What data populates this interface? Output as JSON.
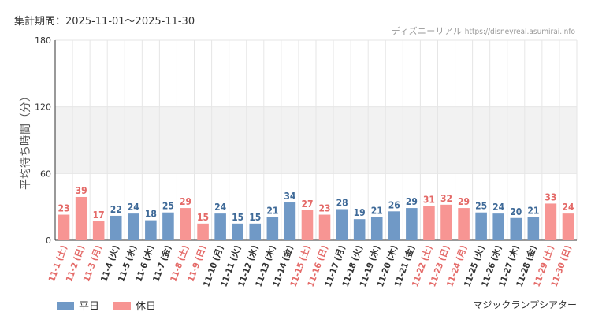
{
  "period_label": "集計期間：2025-11-01～2025-11-30",
  "source": {
    "name": "ディズニーリアル",
    "url": "https://disneyreal.asumirai.info"
  },
  "attraction": "マジックランプシアター",
  "colors": {
    "weekday": "#7099c6",
    "holiday": "#f79593",
    "weekday_text": "#3f6a98",
    "holiday_text": "#e46a68",
    "grid": "#e6e6e6",
    "band": "#f2f2f2",
    "axis": "#333333",
    "tick_text": "#333333"
  },
  "legend": [
    {
      "key": "weekday",
      "label": "平日"
    },
    {
      "key": "holiday",
      "label": "休日"
    }
  ],
  "chart_data": {
    "type": "bar",
    "title": "",
    "ylabel": "平均待ち時間（分）",
    "xlabel": "",
    "ylim": [
      0,
      180
    ],
    "yticks": [
      0,
      60,
      120,
      180
    ],
    "categories": [
      "11-1 (土)",
      "11-2 (日)",
      "11-3 (月)",
      "11-4 (火)",
      "11-5 (水)",
      "11-6 (木)",
      "11-7 (金)",
      "11-8 (土)",
      "11-9 (日)",
      "11-10 (月)",
      "11-11 (火)",
      "11-12 (水)",
      "11-13 (木)",
      "11-14 (金)",
      "11-15 (土)",
      "11-16 (日)",
      "11-17 (月)",
      "11-18 (火)",
      "11-19 (水)",
      "11-20 (木)",
      "11-21 (金)",
      "11-22 (土)",
      "11-23 (日)",
      "11-24 (月)",
      "11-25 (火)",
      "11-26 (水)",
      "11-27 (木)",
      "11-28 (金)",
      "11-29 (土)",
      "11-30 (日)"
    ],
    "values": [
      23,
      39,
      17,
      22,
      24,
      18,
      25,
      29,
      15,
      24,
      15,
      15,
      21,
      34,
      27,
      23,
      28,
      19,
      21,
      26,
      29,
      31,
      32,
      29,
      25,
      24,
      20,
      21,
      33,
      24
    ],
    "day_type": [
      "holiday",
      "holiday",
      "holiday",
      "weekday",
      "weekday",
      "weekday",
      "weekday",
      "holiday",
      "holiday",
      "weekday",
      "weekday",
      "weekday",
      "weekday",
      "weekday",
      "holiday",
      "holiday",
      "weekday",
      "weekday",
      "weekday",
      "weekday",
      "weekday",
      "holiday",
      "holiday",
      "holiday",
      "weekday",
      "weekday",
      "weekday",
      "weekday",
      "holiday",
      "holiday"
    ]
  }
}
